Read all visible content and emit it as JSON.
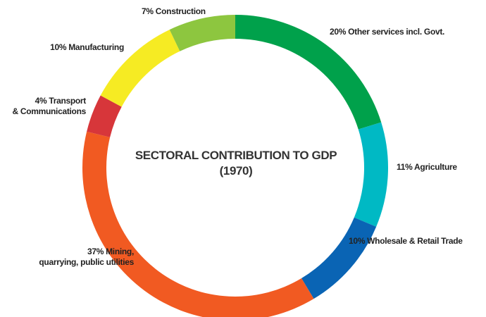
{
  "chart_data": {
    "type": "pie",
    "donut": true,
    "title_line1": "SECTORAL CONTRIBUTION TO GDP",
    "title_line2": "(1970)",
    "slices": [
      {
        "label": "20% Other services incl. Govt.",
        "value": 20,
        "color": "#00a14b"
      },
      {
        "label": "11% Agriculture",
        "value": 11,
        "color": "#00b9c4"
      },
      {
        "label": "10% Wholesale & Retail Trade",
        "value": 10,
        "color": "#0a64b4"
      },
      {
        "label_lines": [
          "37% Mining,",
          "quarrying, public utilities"
        ],
        "value": 37,
        "color": "#f15a22"
      },
      {
        "label_lines": [
          "4% Transport",
          "& Communications"
        ],
        "value": 4,
        "color": "#d7363a"
      },
      {
        "label": "10% Manufacturing",
        "value": 10,
        "color": "#f6eb23"
      },
      {
        "label": "7% Construction",
        "value": 7,
        "color": "#8dc63f"
      }
    ]
  }
}
